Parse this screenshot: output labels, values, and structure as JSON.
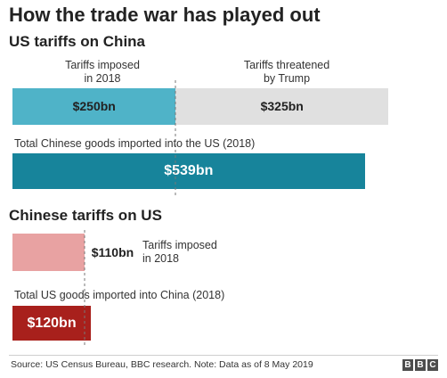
{
  "title": "How the trade war has played out",
  "footer": {
    "source": "Source: US Census Bureau, BBC research. Note: Data as of 8 May 2019"
  },
  "logo": [
    "B",
    "B",
    "C"
  ],
  "chart_data": [
    {
      "type": "bar",
      "title": "US tariffs on China",
      "stacked_row": {
        "segments": [
          {
            "name": "Tariffs imposed in 2018",
            "header": [
              "Tariffs imposed",
              "in 2018"
            ],
            "value": 250,
            "label": "$250bn",
            "color": "#4fb3c8"
          },
          {
            "name": "Tariffs threatened by Trump",
            "header": [
              "Tariffs threatened",
              "by Trump"
            ],
            "value": 325,
            "label": "$325bn",
            "color": "#e0e0e0"
          }
        ]
      },
      "total": {
        "caption": "Total Chinese goods imported into the US (2018)",
        "value": 539,
        "label": "$539bn",
        "color": "#17849b"
      },
      "units": "bn",
      "xlim": [
        0,
        575
      ]
    },
    {
      "type": "bar",
      "title": "Chinese tariffs on US",
      "imposed": {
        "value": 110,
        "label": "$110bn",
        "note": [
          "Tariffs imposed",
          "in 2018"
        ],
        "color": "#e8a2a2"
      },
      "total": {
        "caption": "Total US goods imported into China (2018)",
        "value": 120,
        "label": "$120bn",
        "color": "#a8201c"
      },
      "units": "bn",
      "xlim": [
        0,
        575
      ]
    }
  ]
}
